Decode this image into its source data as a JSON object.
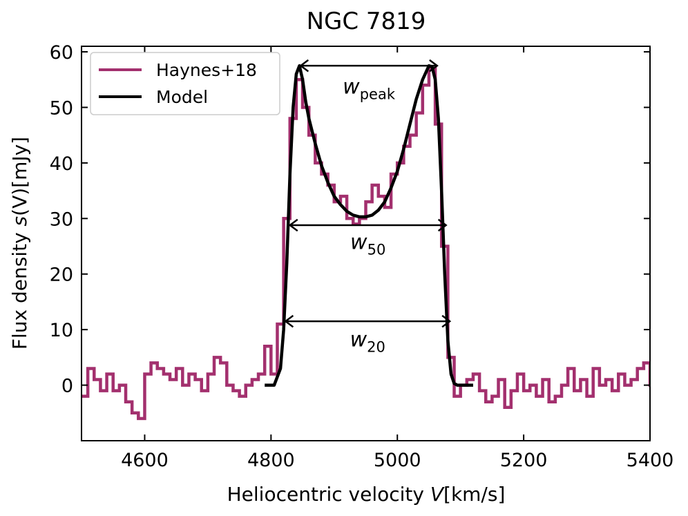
{
  "chart_data": {
    "type": "line",
    "title": "NGC 7819",
    "xlabel_prefix": "Heliocentric velocity ",
    "xlabel_var": "V",
    "xlabel_unit": "[km/s]",
    "ylabel_prefix": "Flux density ",
    "ylabel_var": "s",
    "ylabel_arg": "(V)",
    "ylabel_unit": "[mJy]",
    "xlim": [
      4500,
      5400
    ],
    "ylim": [
      -10,
      61
    ],
    "xticks": [
      4600,
      4800,
      5000,
      5200,
      5400
    ],
    "yticks": [
      0,
      10,
      20,
      30,
      40,
      50,
      60
    ],
    "legend_position": "upper-left",
    "colors": {
      "observed": "#a3306e",
      "model": "#000000"
    },
    "series": [
      {
        "name": "Haynes+18",
        "style": "step",
        "x": [
          4500,
          4510,
          4520,
          4530,
          4540,
          4550,
          4560,
          4570,
          4580,
          4590,
          4600,
          4610,
          4620,
          4630,
          4640,
          4650,
          4660,
          4670,
          4680,
          4690,
          4700,
          4710,
          4720,
          4730,
          4740,
          4750,
          4760,
          4770,
          4780,
          4790,
          4800,
          4810,
          4820,
          4830,
          4840,
          4850,
          4860,
          4870,
          4880,
          4890,
          4900,
          4910,
          4920,
          4930,
          4940,
          4950,
          4960,
          4970,
          4980,
          4990,
          5000,
          5010,
          5020,
          5030,
          5040,
          5050,
          5060,
          5070,
          5080,
          5090,
          5100,
          5110,
          5120,
          5130,
          5140,
          5150,
          5160,
          5170,
          5180,
          5190,
          5200,
          5210,
          5220,
          5230,
          5240,
          5250,
          5260,
          5270,
          5280,
          5290,
          5300,
          5310,
          5320,
          5330,
          5340,
          5350,
          5360,
          5370,
          5380,
          5390,
          5400
        ],
        "values": [
          -2,
          3,
          1,
          -1,
          2,
          -1,
          0,
          -3,
          -5,
          -6,
          2,
          4,
          3,
          2,
          1,
          3,
          0,
          2,
          1,
          -1,
          2,
          5,
          4,
          0,
          -1,
          -2,
          0,
          1,
          2,
          7,
          2,
          11,
          30,
          48,
          55,
          50,
          45,
          40,
          38,
          36,
          33,
          34,
          30,
          29,
          30,
          33,
          36,
          34,
          32,
          38,
          40,
          43,
          45,
          49,
          54,
          57,
          47,
          25,
          5,
          -2,
          0,
          1,
          2,
          -1,
          -3,
          -2,
          1,
          -4,
          -1,
          2,
          -1,
          0,
          -2,
          1,
          -3,
          -2,
          0,
          3,
          -1,
          1,
          -2,
          3,
          0,
          1,
          -1,
          2,
          0,
          1,
          3,
          4,
          0
        ],
        "label_text": "Haynes+18"
      },
      {
        "name": "Model",
        "style": "line",
        "x": [
          4790,
          4805,
          4815,
          4820,
          4825,
          4830,
          4835,
          4840,
          4845,
          4850,
          4855,
          4860,
          4870,
          4880,
          4890,
          4900,
          4910,
          4920,
          4930,
          4940,
          4950,
          4960,
          4970,
          4980,
          4990,
          5000,
          5010,
          5020,
          5030,
          5040,
          5050,
          5055,
          5060,
          5065,
          5070,
          5075,
          5080,
          5085,
          5090,
          5095,
          5105,
          5120
        ],
        "values": [
          0,
          0,
          3,
          10,
          22,
          38,
          50,
          56,
          57.5,
          55,
          51,
          48,
          43.5,
          39.5,
          36.5,
          34,
          32.5,
          31.3,
          30.6,
          30.3,
          30.3,
          30.6,
          31.5,
          33,
          35.5,
          38.5,
          42.5,
          47,
          51.5,
          55,
          57.5,
          57.3,
          55,
          48,
          35,
          20,
          8,
          2,
          0.3,
          0,
          0,
          0
        ],
        "label_text": "Model"
      }
    ],
    "annotations": [
      {
        "name": "w-peak",
        "var": "w",
        "sub": "peak",
        "x1": 4847,
        "x2": 5063,
        "y": 57.5,
        "text_y": 52.5
      },
      {
        "name": "w-50",
        "var": "w",
        "sub": "50",
        "x1": 4830,
        "x2": 5077,
        "y": 28.8,
        "text_y": 24.5
      },
      {
        "name": "w-20",
        "var": "w",
        "sub": "20",
        "x1": 4823,
        "x2": 5083,
        "y": 11.5,
        "text_y": 7.0
      }
    ]
  }
}
